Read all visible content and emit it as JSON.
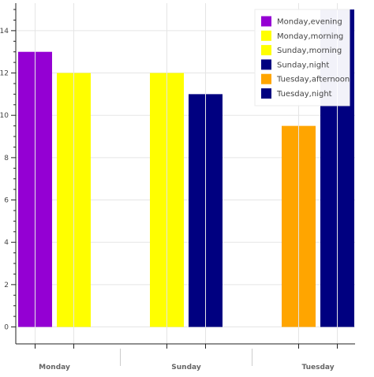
{
  "chart_data": {
    "type": "bar",
    "title": "",
    "xlabel": "",
    "ylabel": "",
    "ylim": [
      -0.8,
      15.3
    ],
    "y_ticks": [
      0,
      2,
      4,
      6,
      8,
      10,
      12,
      14
    ],
    "grid": true,
    "legend_position": "top-right",
    "groups": [
      {
        "label": "Monday",
        "bars": [
          {
            "name": "Monday,evening",
            "value": 13,
            "color": "#9400D3"
          },
          {
            "name": "Monday,morning",
            "value": 12,
            "color": "#FFFF00"
          }
        ]
      },
      {
        "label": "Sunday",
        "bars": [
          {
            "name": "Sunday,morning",
            "value": 12,
            "color": "#FFFF00"
          },
          {
            "name": "Sunday,night",
            "value": 11,
            "color": "#000080"
          }
        ]
      },
      {
        "label": "Tuesday",
        "bars": [
          {
            "name": "Tuesday,afternoon",
            "value": 9.5,
            "color": "#FFA500"
          },
          {
            "name": "Tuesday,night",
            "value": 15,
            "color": "#000080"
          }
        ]
      }
    ],
    "legend": [
      {
        "label": "Monday,evening",
        "color": "#9400D3"
      },
      {
        "label": "Monday,morning",
        "color": "#FFFF00"
      },
      {
        "label": "Sunday,morning",
        "color": "#FFFF00"
      },
      {
        "label": "Sunday,night",
        "color": "#000080"
      },
      {
        "label": "Tuesday,afternoon",
        "color": "#FFA500"
      },
      {
        "label": "Tuesday,night",
        "color": "#000080"
      }
    ]
  }
}
